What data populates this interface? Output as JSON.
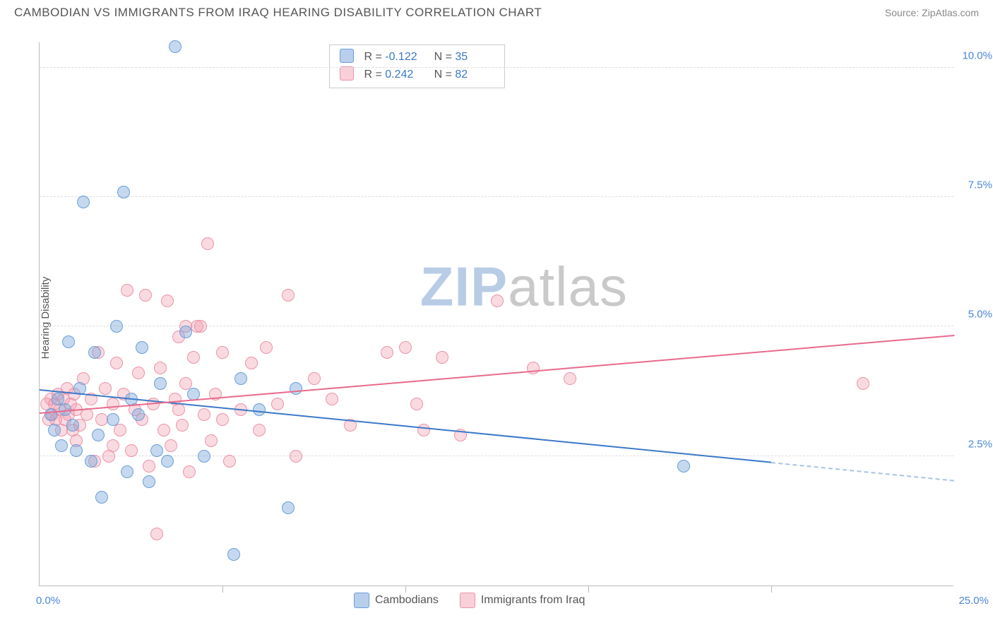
{
  "title": "CAMBODIAN VS IMMIGRANTS FROM IRAQ HEARING DISABILITY CORRELATION CHART",
  "source": "Source: ZipAtlas.com",
  "y_axis_label": "Hearing Disability",
  "chart": {
    "type": "scatter",
    "background": "#ffffff",
    "grid_color": "#dddddd",
    "axis_color": "#bbbbbb",
    "label_color": "#4a87d8",
    "x": {
      "min": 0,
      "max": 25,
      "unit": "%",
      "left_label": "0.0%",
      "right_label": "25.0%",
      "tick_step": 5
    },
    "y": {
      "min": 0,
      "max": 10.5,
      "unit": "%",
      "ticks": [
        2.5,
        5.0,
        7.5,
        10.0
      ],
      "tick_labels": [
        "2.5%",
        "5.0%",
        "7.5%",
        "10.0%"
      ]
    },
    "series": {
      "blue": {
        "name": "Cambodians",
        "fill": "rgba(126,168,220,0.45)",
        "stroke": "#6a9fd8",
        "R": "-0.122",
        "N": "35",
        "trend": {
          "x1": 0,
          "y1": 3.8,
          "x2_solid": 20,
          "y2_solid": 2.4,
          "x2_dash": 25,
          "y2_dash": 2.05,
          "color": "#3b78c9"
        },
        "points": [
          [
            0.3,
            3.3
          ],
          [
            0.4,
            3.0
          ],
          [
            0.5,
            3.6
          ],
          [
            0.6,
            2.7
          ],
          [
            0.7,
            3.4
          ],
          [
            0.8,
            4.7
          ],
          [
            0.9,
            3.1
          ],
          [
            1.0,
            2.6
          ],
          [
            1.1,
            3.8
          ],
          [
            1.2,
            7.4
          ],
          [
            1.4,
            2.4
          ],
          [
            1.5,
            4.5
          ],
          [
            1.6,
            2.9
          ],
          [
            1.7,
            1.7
          ],
          [
            2.0,
            3.2
          ],
          [
            2.1,
            5.0
          ],
          [
            2.3,
            7.6
          ],
          [
            2.4,
            2.2
          ],
          [
            2.5,
            3.6
          ],
          [
            2.8,
            4.6
          ],
          [
            3.0,
            2.0
          ],
          [
            3.3,
            3.9
          ],
          [
            3.5,
            2.4
          ],
          [
            3.7,
            10.4
          ],
          [
            4.0,
            4.9
          ],
          [
            4.2,
            3.7
          ],
          [
            4.5,
            2.5
          ],
          [
            5.3,
            0.6
          ],
          [
            5.5,
            4.0
          ],
          [
            6.0,
            3.4
          ],
          [
            6.8,
            1.5
          ],
          [
            7.0,
            3.8
          ],
          [
            17.6,
            2.3
          ],
          [
            3.2,
            2.6
          ],
          [
            2.7,
            3.3
          ]
        ]
      },
      "pink": {
        "name": "Immigrants from Iraq",
        "fill": "rgba(240,150,170,0.35)",
        "stroke": "#ea93a8",
        "R": "0.242",
        "N": "82",
        "trend": {
          "x1": 0,
          "y1": 3.35,
          "x2": 25,
          "y2": 4.85,
          "color": "#e86a8c"
        },
        "points": [
          [
            0.2,
            3.5
          ],
          [
            0.25,
            3.2
          ],
          [
            0.3,
            3.6
          ],
          [
            0.35,
            3.3
          ],
          [
            0.4,
            3.5
          ],
          [
            0.45,
            3.2
          ],
          [
            0.5,
            3.7
          ],
          [
            0.55,
            3.4
          ],
          [
            0.6,
            3.0
          ],
          [
            0.65,
            3.6
          ],
          [
            0.7,
            3.2
          ],
          [
            0.75,
            3.8
          ],
          [
            0.8,
            3.3
          ],
          [
            0.85,
            3.5
          ],
          [
            0.9,
            3.0
          ],
          [
            0.95,
            3.7
          ],
          [
            1.0,
            3.4
          ],
          [
            1.1,
            3.1
          ],
          [
            1.2,
            4.0
          ],
          [
            1.3,
            3.3
          ],
          [
            1.4,
            3.6
          ],
          [
            1.5,
            2.4
          ],
          [
            1.6,
            4.5
          ],
          [
            1.7,
            3.2
          ],
          [
            1.8,
            3.8
          ],
          [
            1.9,
            2.5
          ],
          [
            2.0,
            3.5
          ],
          [
            2.1,
            4.3
          ],
          [
            2.2,
            3.0
          ],
          [
            2.3,
            3.7
          ],
          [
            2.4,
            5.7
          ],
          [
            2.5,
            2.6
          ],
          [
            2.6,
            3.4
          ],
          [
            2.7,
            4.1
          ],
          [
            2.8,
            3.2
          ],
          [
            2.9,
            5.6
          ],
          [
            3.0,
            2.3
          ],
          [
            3.1,
            3.5
          ],
          [
            3.2,
            1.0
          ],
          [
            3.3,
            4.2
          ],
          [
            3.4,
            3.0
          ],
          [
            3.5,
            5.5
          ],
          [
            3.6,
            2.7
          ],
          [
            3.7,
            3.6
          ],
          [
            3.8,
            4.8
          ],
          [
            3.9,
            3.1
          ],
          [
            4.0,
            3.9
          ],
          [
            4.1,
            2.2
          ],
          [
            4.2,
            4.4
          ],
          [
            4.3,
            5.0
          ],
          [
            4.4,
            5.0
          ],
          [
            4.5,
            3.3
          ],
          [
            4.6,
            6.6
          ],
          [
            4.7,
            2.8
          ],
          [
            4.8,
            3.7
          ],
          [
            5.0,
            4.5
          ],
          [
            5.2,
            2.4
          ],
          [
            5.5,
            3.4
          ],
          [
            5.8,
            4.3
          ],
          [
            6.0,
            3.0
          ],
          [
            6.2,
            4.6
          ],
          [
            6.5,
            3.5
          ],
          [
            6.8,
            5.6
          ],
          [
            7.0,
            2.5
          ],
          [
            7.5,
            4.0
          ],
          [
            8.0,
            3.6
          ],
          [
            8.5,
            3.1
          ],
          [
            9.5,
            4.5
          ],
          [
            10.0,
            4.6
          ],
          [
            10.3,
            3.5
          ],
          [
            10.5,
            3.0
          ],
          [
            11.0,
            4.4
          ],
          [
            11.5,
            2.9
          ],
          [
            12.5,
            5.5
          ],
          [
            13.5,
            4.2
          ],
          [
            14.5,
            4.0
          ],
          [
            22.5,
            3.9
          ],
          [
            4.0,
            5.0
          ],
          [
            5.0,
            3.2
          ],
          [
            3.8,
            3.4
          ],
          [
            2.0,
            2.7
          ],
          [
            1.0,
            2.8
          ]
        ]
      }
    }
  },
  "top_legend": {
    "rows": [
      {
        "swatch": "blue",
        "R_label": "R =",
        "R": "-0.122",
        "N_label": "N =",
        "N": "35"
      },
      {
        "swatch": "pink",
        "R_label": "R =",
        "R": "0.242",
        "N_label": "N =",
        "N": "82"
      }
    ]
  },
  "bottom_legend": {
    "items": [
      {
        "swatch": "blue",
        "label": "Cambodians"
      },
      {
        "swatch": "pink",
        "label": "Immigrants from Iraq"
      }
    ]
  },
  "watermark": {
    "part1": "ZIP",
    "part2": "atlas"
  }
}
